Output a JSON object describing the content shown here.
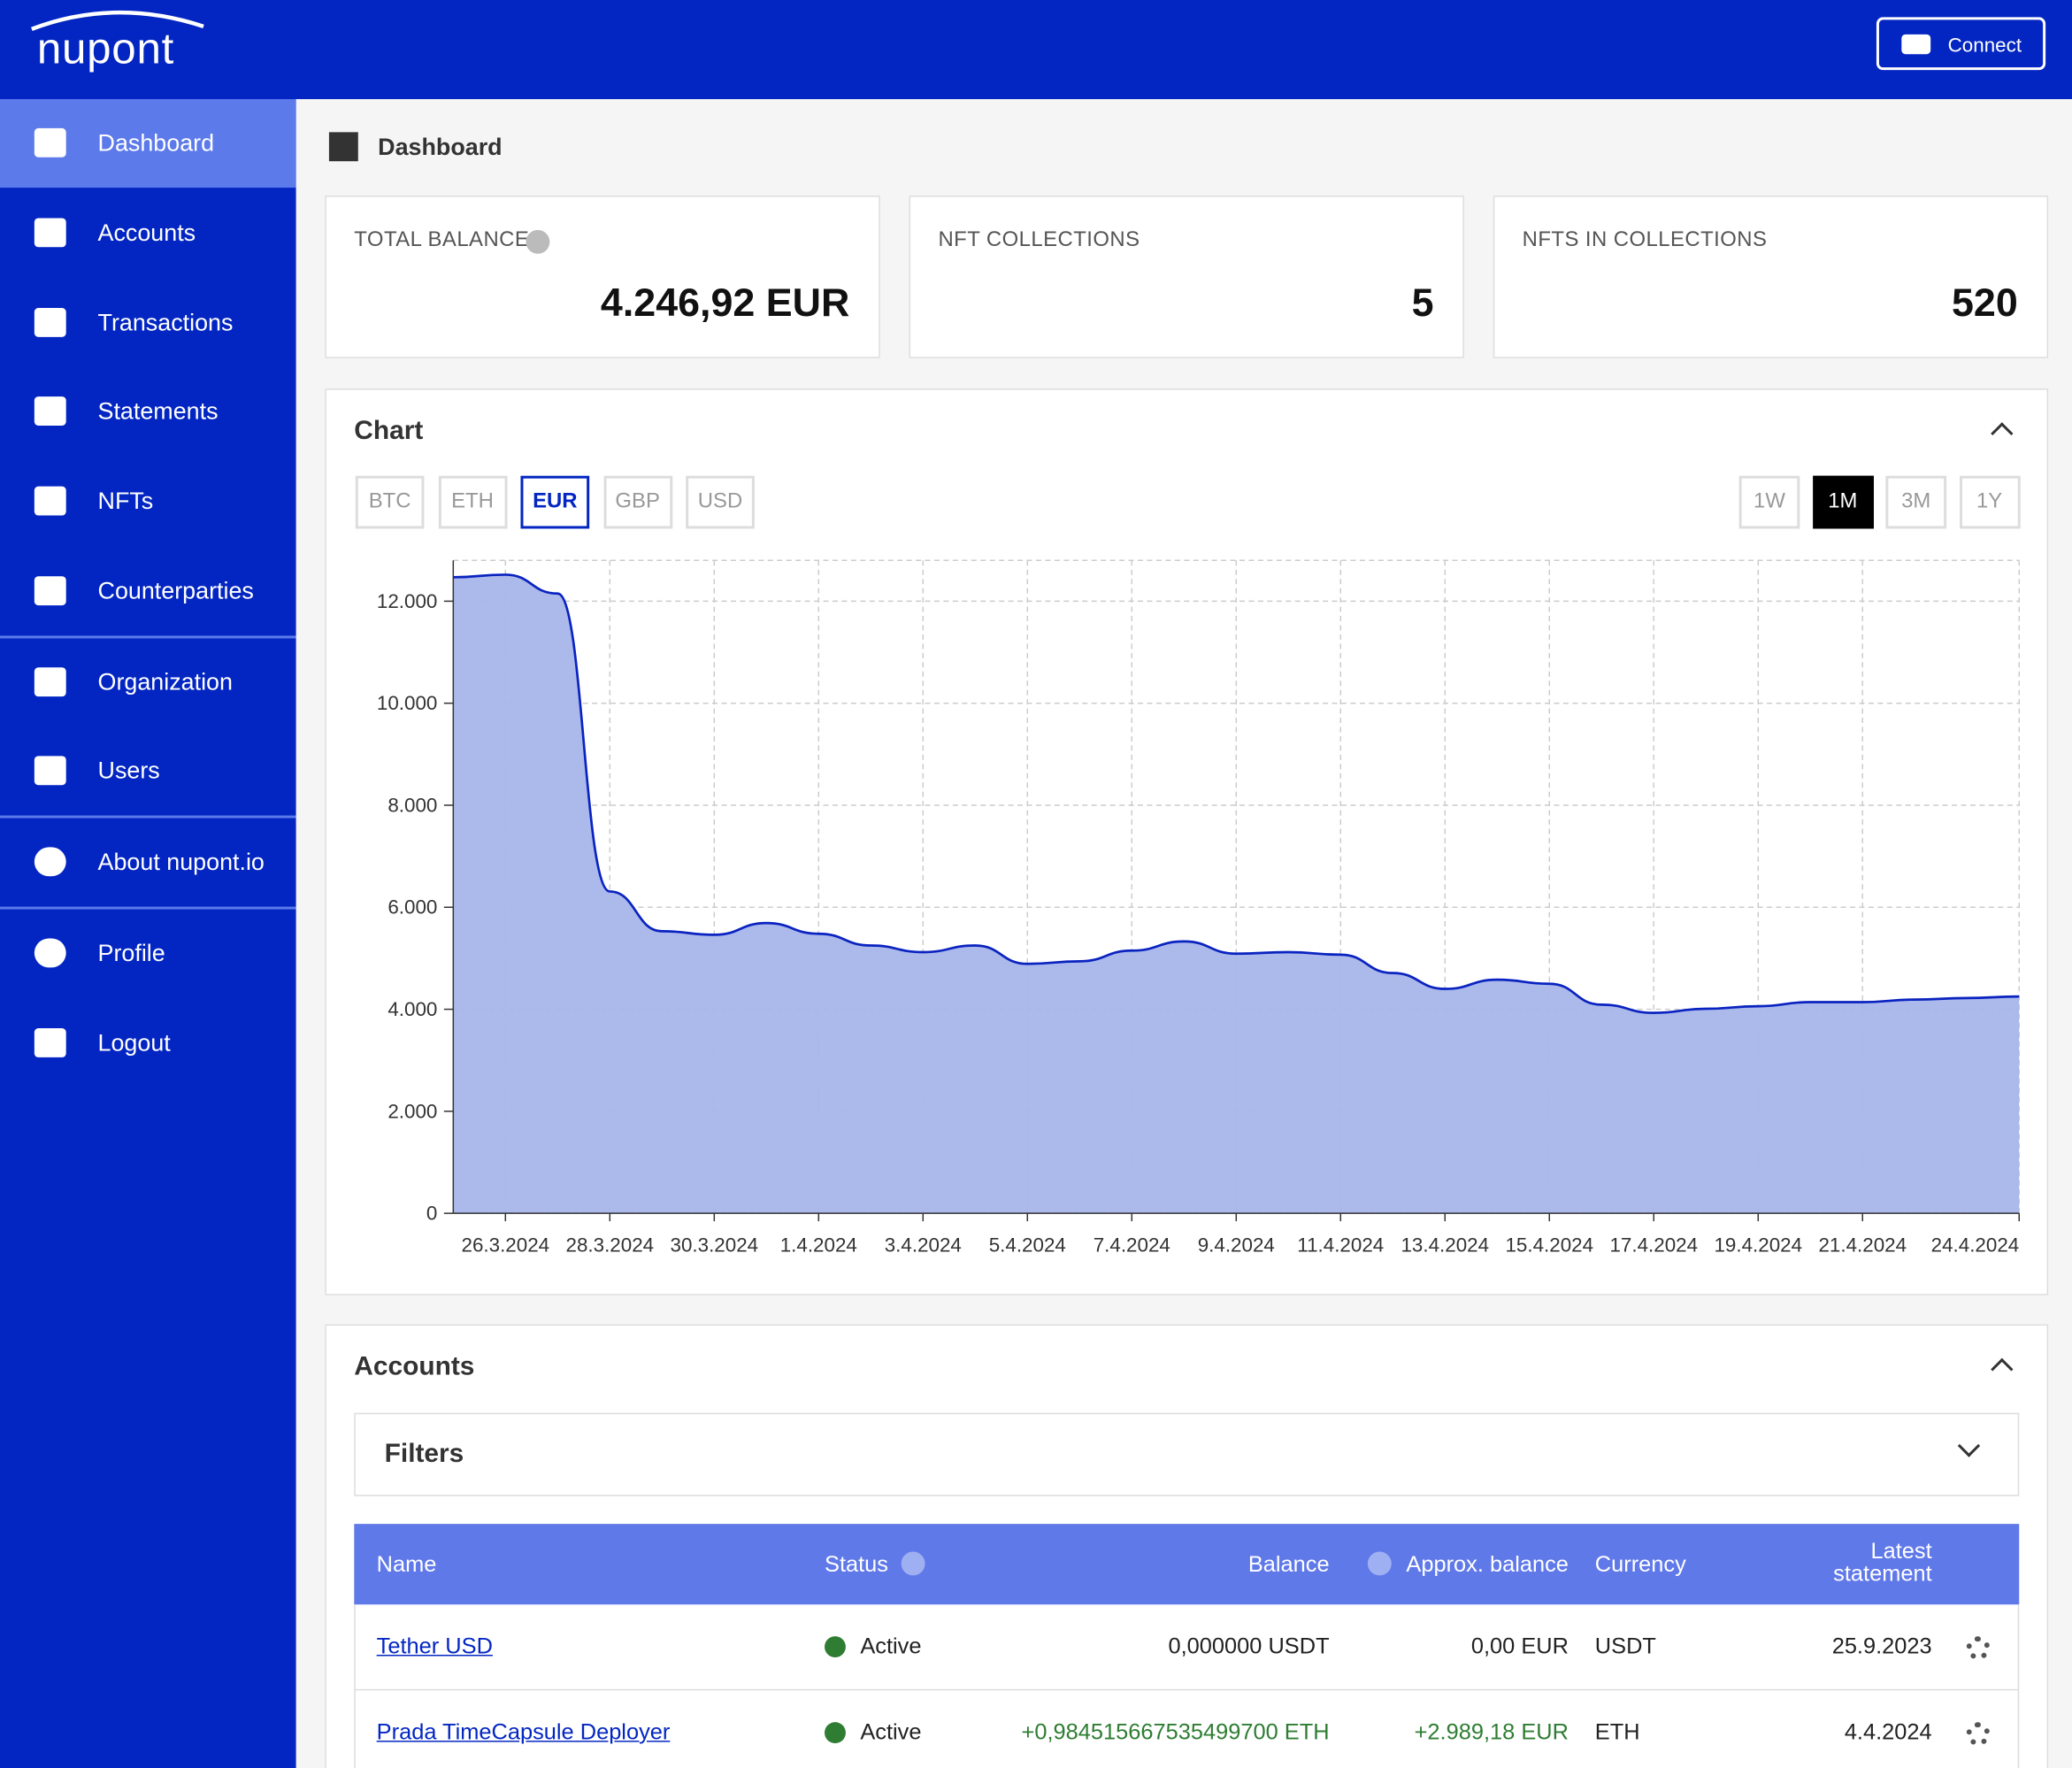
{
  "header": {
    "logo": "nupont",
    "button": "Connect"
  },
  "sidebar": {
    "items": [
      "Dashboard",
      "Accounts",
      "Transactions",
      "Statements",
      "NFTs",
      "Counterparties",
      "Organization",
      "Users",
      "About nupont.io",
      "Profile",
      "Logout"
    ]
  },
  "page_title": "Dashboard",
  "cards": [
    {
      "label": "TOTAL BALANCE",
      "value": "4.246,92 EUR"
    },
    {
      "label": "NFT COLLECTIONS",
      "value": "5"
    },
    {
      "label": "NFTS IN COLLECTIONS",
      "value": "520"
    }
  ],
  "chart": {
    "title": "Chart",
    "currencies": [
      "BTC",
      "ETH",
      "EUR",
      "GBP",
      "USD"
    ],
    "selected_currency": 2,
    "ranges": [
      "1W",
      "1M",
      "3M",
      "1Y"
    ],
    "selected_range": 1,
    "type": "area",
    "color": "#0a23c0",
    "fill": "#a7b5ea",
    "grid": true,
    "categories": [
      null,
      "26.3.2024",
      null,
      "28.3.2024",
      null,
      "30.3.2024",
      null,
      "1.4.2024",
      null,
      "3.4.2024",
      null,
      "5.4.2024",
      null,
      "7.4.2024",
      null,
      "9.4.2024",
      null,
      "11.4.2024",
      null,
      "13.4.2024",
      null,
      "15.4.2024",
      null,
      "17.4.2024",
      null,
      "19.4.2024",
      null,
      "21.4.2024",
      null,
      null,
      "24.4.2024"
    ],
    "values": [
      12470,
      12520,
      12150,
      6310,
      5530,
      5460,
      5690,
      5480,
      5250,
      5120,
      5250,
      4890,
      4940,
      5150,
      5330,
      5090,
      5120,
      5070,
      4710,
      4400,
      4580,
      4500,
      4090,
      3930,
      4010,
      4060,
      4140,
      4140,
      4190,
      4220,
      4250
    ],
    "ylim": [
      0,
      12800
    ],
    "yticks": [
      0,
      {
        "value": 2000,
        "label": "2.000"
      },
      {
        "value": 4000,
        "label": "4.000"
      },
      {
        "value": 6000,
        "label": "6.000"
      },
      {
        "value": 8000,
        "label": "8.000"
      },
      {
        "value": 10000,
        "label": "10.000"
      },
      {
        "value": 12000,
        "label": "12.000"
      }
    ]
  },
  "accounts": {
    "title": "Accounts",
    "filters": "Filters",
    "columns": [
      "Name",
      "Status",
      "Balance",
      "Approx. balance",
      "Currency",
      "Latest statement"
    ],
    "rows": [
      [
        "Tether USD",
        "Active",
        "0,000000 USDT",
        "0,00 EUR",
        "USDT",
        "25.9.2023"
      ],
      [
        "Prada TimeCapsule Deployer",
        "Active",
        "+0,984515667535499700 ETH",
        "+2.989,18 EUR",
        "ETH",
        "4.4.2024"
      ]
    ]
  }
}
